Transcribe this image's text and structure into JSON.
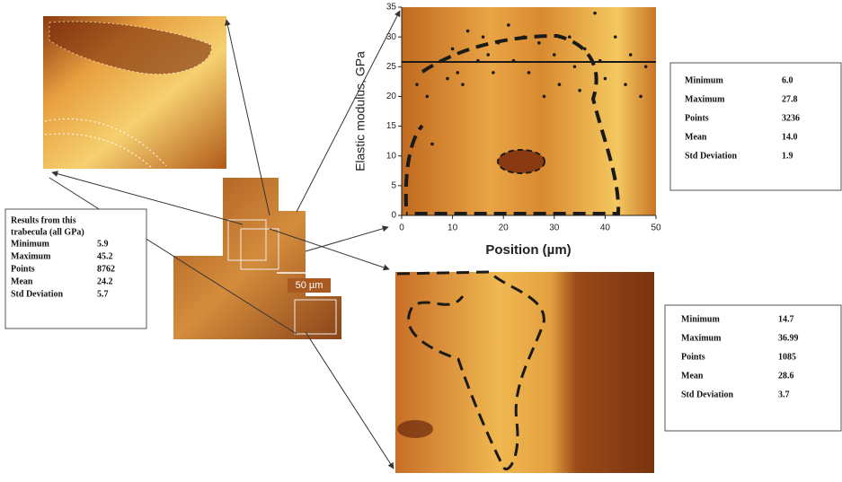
{
  "chart_data": {
    "type": "scatter",
    "ylabel": "Elastic modulus, GPa",
    "xlabel": "Position (µm)",
    "xlim": [
      0,
      50
    ],
    "ylim": [
      0,
      35
    ],
    "xticks": [
      0,
      10,
      20,
      30,
      40,
      50
    ],
    "yticks": [
      0,
      5,
      10,
      15,
      20,
      25,
      30,
      35
    ],
    "hline": 25.8,
    "hline_color": "#1a1a1a",
    "series": [
      {
        "color": "#1a1a1a",
        "x": [
          3,
          5,
          6,
          8,
          9,
          10,
          11,
          12,
          13,
          15,
          16,
          17,
          18,
          19,
          21,
          22,
          24,
          25,
          27,
          28,
          30,
          31,
          33,
          34,
          35,
          36,
          38,
          39,
          40,
          42,
          44,
          45,
          47,
          48
        ],
        "y": [
          22,
          20,
          12,
          26,
          23,
          28,
          24,
          22,
          31,
          26,
          30,
          27,
          24,
          29,
          32,
          26,
          30,
          24,
          29,
          20,
          27,
          22,
          30,
          25,
          21,
          28,
          34,
          26,
          23,
          30,
          22,
          27,
          20,
          25
        ]
      }
    ]
  },
  "scale_bar": "50 µm",
  "left_stats": {
    "title_lines": [
      "Results from this",
      "trabecula (all GPa)"
    ],
    "rows": [
      [
        "Minimum",
        "5.9"
      ],
      [
        "Maximum",
        "45.2"
      ],
      [
        "Points",
        "8762"
      ],
      [
        "Mean",
        "24.2"
      ],
      [
        "Std Deviation",
        "5.7"
      ]
    ]
  },
  "top_stats": {
    "rows": [
      [
        "Minimum",
        "6.0"
      ],
      [
        "Maximum",
        "27.8"
      ],
      [
        "Points",
        "3236"
      ],
      [
        "Mean",
        "14.0"
      ],
      [
        "Std Deviation",
        "1.9"
      ]
    ]
  },
  "bottom_stats": {
    "rows": [
      [
        "Minimum",
        "14.7"
      ],
      [
        "Maximum",
        "36.99"
      ],
      [
        "Points",
        "1085"
      ],
      [
        "Mean",
        "28.6"
      ],
      [
        "Std Deviation",
        "3.7"
      ]
    ]
  }
}
